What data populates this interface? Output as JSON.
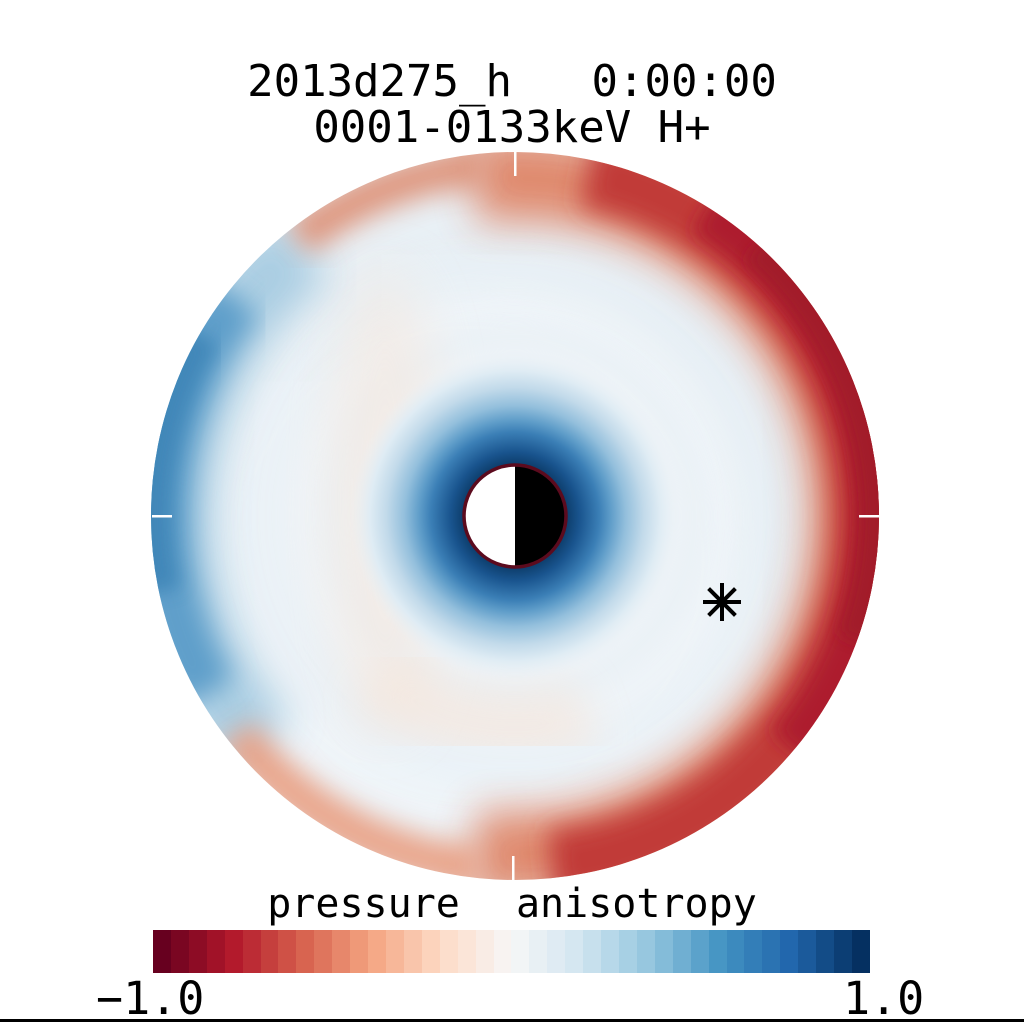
{
  "header": {
    "title_line1": "2013d275_h   0:00:00",
    "title_line2": "0001-0133keV H+"
  },
  "colorbar": {
    "label": "pressure anisotropy",
    "min_label": "−1.0",
    "max_label": "1.0",
    "steps": 40,
    "orientation": "horizontal",
    "stops": [
      "#67001f",
      "#b2182b",
      "#d6604d",
      "#f4a582",
      "#fddbc7",
      "#f7f7f7",
      "#d1e5f0",
      "#92c5de",
      "#4393c3",
      "#2166ac",
      "#053061"
    ]
  },
  "palette": {
    "background": "#ffffff",
    "disk_base": "#e9f0f5",
    "dark_red_rim": "#a11a2a",
    "red_band": "#c13a38",
    "salmon_band": "#df8568",
    "blue_rim": "#4186b8",
    "light_blue_band": "#a3c9e0",
    "inner_glow_dark": "#0b3a66",
    "earth_outline": "#5c0b1e",
    "earth_dayside": "#ffffff",
    "earth_nightside": "#000000",
    "marker": "#000000",
    "tick": "#ffffff",
    "text": "#000000"
  },
  "chart_data": {
    "type": "heatmap",
    "projection": "polar equatorial-plane disk (magnetospheric ring-current view)",
    "title": "2013d275_h   0:00:00",
    "subtitle": "0001-0133keV H+",
    "colorbar_label": "pressure anisotropy",
    "value_range": [
      -1.0,
      1.0
    ],
    "colormap": "RdBu diverging, red = -1.0 (left), white = 0, blue = +1.0 (right), ~40 discrete steps",
    "axis_ticks": "small white tick marks at 12, 3, 6 and 9 o'clock on the disk rim; no numeric tick labels",
    "features": [
      {
        "region": "outer rim, upper-right through east (dawn-noon sector)",
        "value": -0.9
      },
      {
        "region": "outer band, southeast sector",
        "value": -0.55
      },
      {
        "region": "bottom outer edge near 6 o'clock tick",
        "value": -0.3
      },
      {
        "region": "top outer edge near 12 o'clock tick",
        "value": -0.4
      },
      {
        "region": "outer rim, west (left) sector",
        "value": 0.55
      },
      {
        "region": "narrow ring just outside Earth glyph",
        "value": 1.0
      },
      {
        "region": "broad mid-radius interior (most of disk)",
        "value": 0.05
      },
      {
        "region": "faint peach wisps left of and below center",
        "value": -0.05
      }
    ],
    "marker": {
      "symbol": "asterisk",
      "color": "#000000",
      "approx_position": "lower right of center, ~57% of disk radius at ~4 o'clock"
    },
    "earth_glyph": {
      "dayside": "white left half",
      "nightside": "black right half",
      "outline_color": "#5c0b1e"
    }
  }
}
